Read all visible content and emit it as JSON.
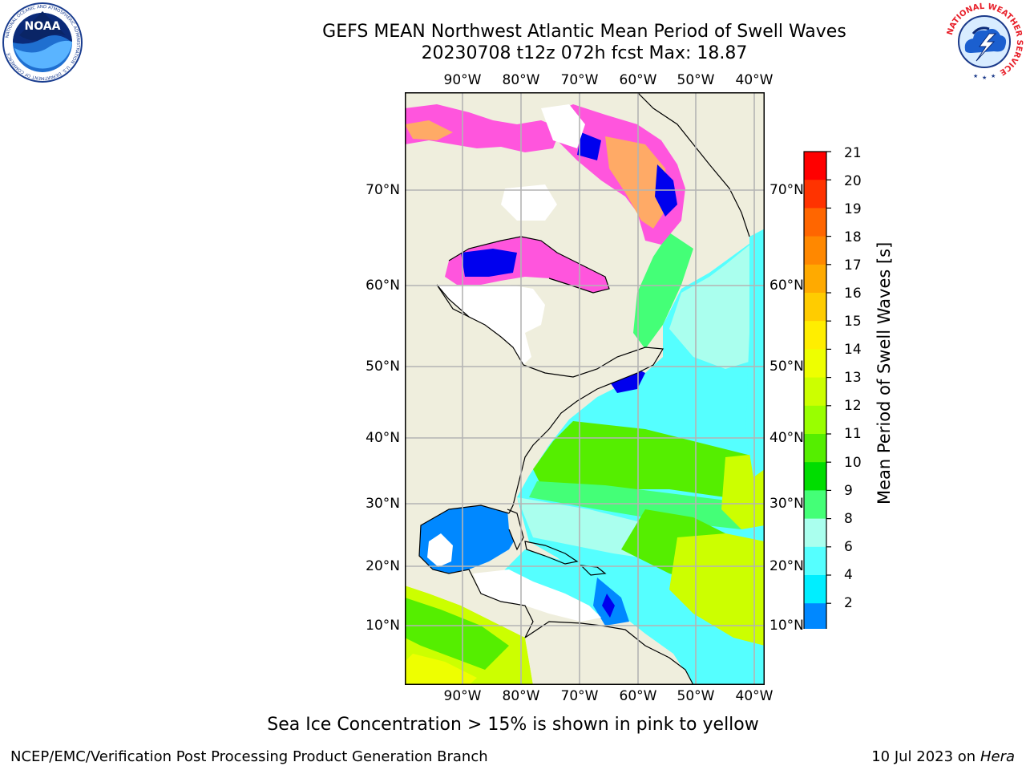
{
  "header": {
    "title_line1": "GEFS MEAN Northwest Atlantic Mean Period of Swell Waves",
    "title_line2": "20230708 t12z 072h fcst   Max: 18.87"
  },
  "logos": {
    "noaa": {
      "inner_text": "NOAA",
      "ring_text": "NATIONAL OCEANIC AND ATMOSPHERIC ADMINISTRATION · U.S. DEPARTMENT OF COMMERCE"
    },
    "nws": {
      "ring_text": "NATIONAL WEATHER SERVICE"
    }
  },
  "map": {
    "longitude_ticks": [
      "90°W",
      "80°W",
      "70°W",
      "60°W",
      "50°W",
      "40°W"
    ],
    "latitude_ticks": [
      "70°N",
      "60°N",
      "50°N",
      "40°N",
      "30°N",
      "20°N",
      "10°N"
    ],
    "colors": {
      "land": "#efeedd",
      "grid": "#b4b4b4",
      "ice_pink": "#ff55dd",
      "ice_orange": "#ffaa66",
      "no_data": "#ffffff"
    }
  },
  "colorbar": {
    "label": "Mean Period of Swell Waves [s]",
    "ticks": [
      "21",
      "20",
      "19",
      "18",
      "17",
      "16",
      "15",
      "14",
      "13",
      "12",
      "11",
      "10",
      "9",
      "8",
      "6",
      "4",
      "2"
    ],
    "colors_top_to_bottom": [
      "#ff0000",
      "#ff3300",
      "#ff6600",
      "#ff8800",
      "#ffaa00",
      "#ffcc00",
      "#ffee00",
      "#eeff00",
      "#ccff00",
      "#99ff00",
      "#55ee00",
      "#00dd00",
      "#44ff77",
      "#aaffee",
      "#55ffff",
      "#00eeff",
      "#0088ff"
    ],
    "under_color": "#0000ee"
  },
  "footer": {
    "sea_ice_note": "Sea Ice Concentration > 15% is shown in pink to yellow",
    "left_credit": "NCEP/EMC/Verification Post Processing Product Generation Branch",
    "right_date": "10 Jul 2023 on ",
    "right_host": "Hera"
  }
}
